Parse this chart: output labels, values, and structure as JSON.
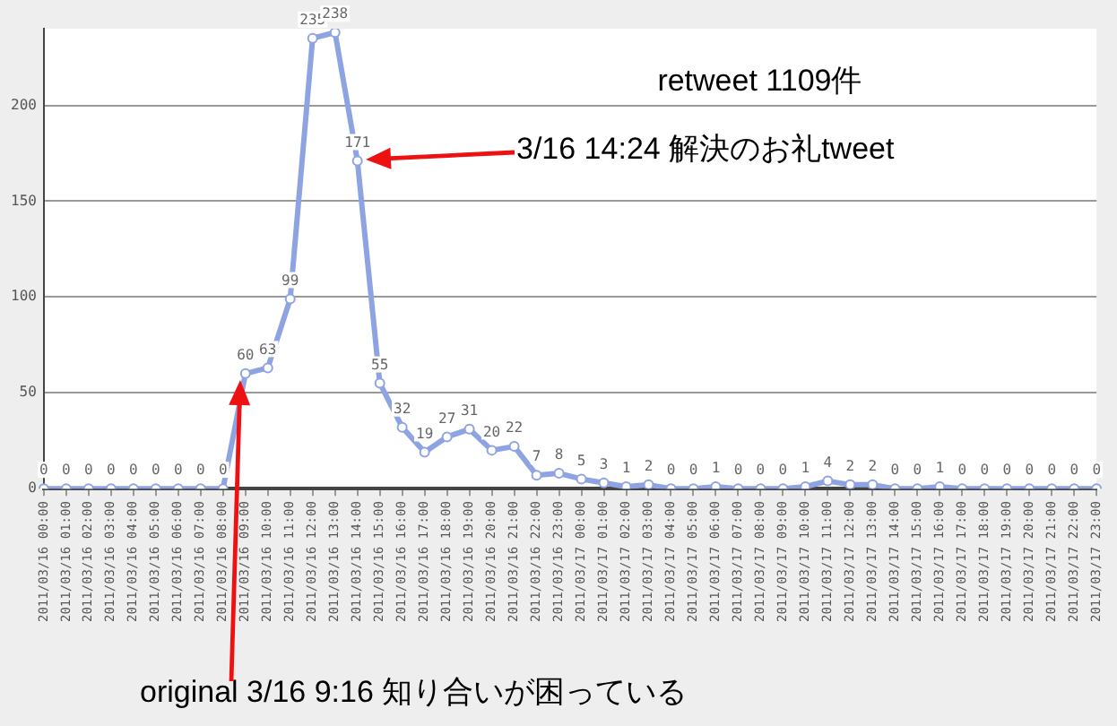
{
  "chart_data": {
    "type": "line",
    "categories": [
      "2011/03/16 00:00",
      "2011/03/16 01:00",
      "2011/03/16 02:00",
      "2011/03/16 03:00",
      "2011/03/16 04:00",
      "2011/03/16 05:00",
      "2011/03/16 06:00",
      "2011/03/16 07:00",
      "2011/03/16 08:00",
      "2011/03/16 09:00",
      "2011/03/16 10:00",
      "2011/03/16 11:00",
      "2011/03/16 12:00",
      "2011/03/16 13:00",
      "2011/03/16 14:00",
      "2011/03/16 15:00",
      "2011/03/16 16:00",
      "2011/03/16 17:00",
      "2011/03/16 18:00",
      "2011/03/16 19:00",
      "2011/03/16 20:00",
      "2011/03/16 21:00",
      "2011/03/16 22:00",
      "2011/03/16 23:00",
      "2011/03/17 00:00",
      "2011/03/17 01:00",
      "2011/03/17 02:00",
      "2011/03/17 03:00",
      "2011/03/17 04:00",
      "2011/03/17 05:00",
      "2011/03/17 06:00",
      "2011/03/17 07:00",
      "2011/03/17 08:00",
      "2011/03/17 09:00",
      "2011/03/17 10:00",
      "2011/03/17 11:00",
      "2011/03/17 12:00",
      "2011/03/17 13:00",
      "2011/03/17 14:00",
      "2011/03/17 15:00",
      "2011/03/17 16:00",
      "2011/03/17 17:00",
      "2011/03/17 18:00",
      "2011/03/17 19:00",
      "2011/03/17 20:00",
      "2011/03/17 21:00",
      "2011/03/17 22:00",
      "2011/03/17 23:00"
    ],
    "series": [
      {
        "color": "#8ea3e2",
        "values": [
          0,
          0,
          0,
          0,
          0,
          0,
          0,
          0,
          0,
          60,
          63,
          99,
          235,
          238,
          171,
          55,
          32,
          19,
          27,
          31,
          20,
          22,
          7,
          8,
          5,
          3,
          1,
          2,
          0,
          0,
          1,
          0,
          0,
          0,
          1,
          4,
          2,
          2,
          0,
          0,
          1,
          0,
          0,
          0,
          0,
          0,
          0,
          0
        ]
      }
    ],
    "ylim": [
      0,
      240
    ],
    "yticks": [
      0,
      50,
      100,
      150,
      200
    ],
    "grid": "y",
    "legend": false,
    "marker": "circle",
    "line_style": "solid",
    "data_labels": true,
    "annotations": [
      "retweet 1109件",
      "3/16 14:24 解決のお礼tweet",
      "original 3/16 9:16 知り合いが困っている"
    ]
  }
}
